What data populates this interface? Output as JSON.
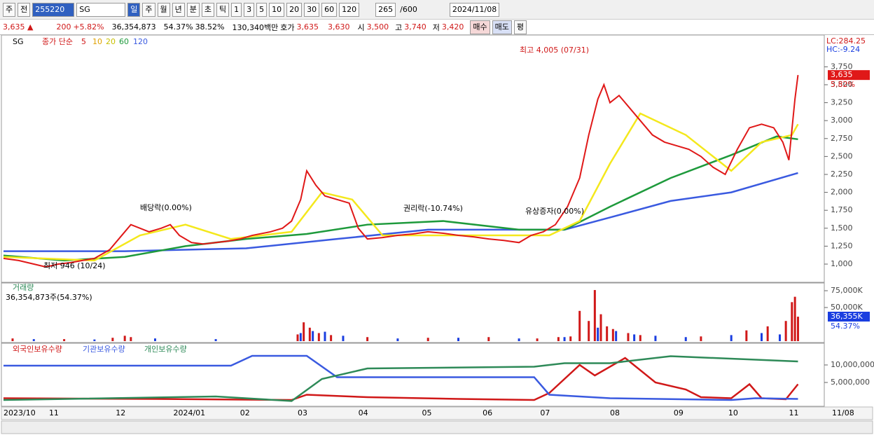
{
  "toolbar": {
    "items": [
      "주",
      "전",
      "255220",
      "SG",
      "일",
      "주",
      "월",
      "년",
      "분",
      "초",
      "틱",
      "1",
      "3",
      "5",
      "10",
      "20",
      "30",
      "60",
      "120"
    ],
    "count": "265",
    "count_max": "/600",
    "date": "2024/11/08"
  },
  "quote": {
    "price": "3,635 ▲",
    "change": "200",
    "change_pct": "+5.82%",
    "volume": "36,354,873",
    "turnover_pct": "54.37%",
    "ratio": "38.52%",
    "amount": "130,340백만",
    "bid_label": "호가",
    "ask": "3,635",
    "bid": "3,630",
    "open_label": "시",
    "open": "3,500",
    "high_label": "고",
    "high": "3,740",
    "low_label": "저",
    "low": "3,420",
    "buy": "매수",
    "sell": "매도",
    "avg": "평"
  },
  "price_panel": {
    "legend": [
      "SG",
      "종가 단순",
      "5",
      "10",
      "20",
      "60",
      "120"
    ],
    "lc": "LC:284.25",
    "hc": "HC:-9.24",
    "last_label": "3,635",
    "last_pct": "5.82%",
    "annotations": [
      "최고 4,005 (07/31)",
      "최저 946 (10/24)",
      "배당락(0.00%)",
      "권리락(-10.74%)",
      "유상증자(0.00%)"
    ],
    "ylim": [
      800,
      4150
    ],
    "yticks": [
      {
        "value": 1000,
        "label": "1,000"
      },
      {
        "value": 1250,
        "label": "1,250"
      },
      {
        "value": 1500,
        "label": "1,500"
      },
      {
        "value": 1750,
        "label": "1,750"
      },
      {
        "value": 2000,
        "label": "2,000"
      },
      {
        "value": 2250,
        "label": "2,250"
      },
      {
        "value": 2500,
        "label": "2,500"
      },
      {
        "value": 2750,
        "label": "2,750"
      },
      {
        "value": 3000,
        "label": "3,000"
      },
      {
        "value": 3250,
        "label": "3,250"
      },
      {
        "value": 3500,
        "label": "3,500"
      },
      {
        "value": 3750,
        "label": "3,750"
      }
    ],
    "series": [
      {
        "name": "종가",
        "color": "#e01818",
        "x": [
          0,
          5,
          10,
          14,
          18,
          22,
          26,
          30,
          35,
          38,
          42,
          45,
          48,
          52,
          55,
          58,
          62,
          66,
          70,
          74,
          78,
          82,
          88,
          92,
          95,
          98,
          100,
          103,
          106,
          110,
          114,
          117,
          120,
          125,
          130,
          135,
          140,
          145,
          150,
          155,
          160,
          165,
          170,
          174,
          178,
          182,
          186,
          190,
          193,
          196,
          198,
          200,
          203,
          206,
          210,
          214,
          218,
          222,
          226,
          230,
          234,
          238,
          242,
          246,
          250,
          254,
          257,
          259,
          261,
          262
        ],
        "values": [
          1080,
          1050,
          1000,
          960,
          1000,
          1020,
          1050,
          1080,
          1200,
          1350,
          1550,
          1500,
          1450,
          1500,
          1550,
          1400,
          1300,
          1280,
          1300,
          1320,
          1350,
          1400,
          1450,
          1500,
          1600,
          1900,
          2300,
          2100,
          1950,
          1900,
          1850,
          1500,
          1350,
          1370,
          1400,
          1420,
          1450,
          1430,
          1400,
          1380,
          1350,
          1330,
          1300,
          1400,
          1450,
          1550,
          1800,
          2200,
          2800,
          3300,
          3500,
          3250,
          3350,
          3200,
          3000,
          2800,
          2700,
          2650,
          2600,
          2500,
          2350,
          2250,
          2600,
          2900,
          2950,
          2900,
          2700,
          2450,
          3300,
          3635
        ]
      },
      {
        "name": "20",
        "color": "#f4e81c",
        "x": [
          0,
          30,
          45,
          60,
          75,
          95,
          105,
          115,
          125,
          160,
          180,
          190,
          200,
          210,
          225,
          240,
          250,
          260,
          262
        ],
        "values": [
          1100,
          1050,
          1400,
          1550,
          1350,
          1450,
          2000,
          1900,
          1400,
          1400,
          1400,
          1600,
          2400,
          3100,
          2800,
          2300,
          2700,
          2800,
          2950
        ]
      },
      {
        "name": "60",
        "color": "#1e9a3c",
        "x": [
          0,
          20,
          40,
          60,
          80,
          100,
          120,
          145,
          170,
          185,
          200,
          220,
          240,
          255,
          262
        ],
        "values": [
          1120,
          1050,
          1100,
          1250,
          1350,
          1420,
          1550,
          1600,
          1480,
          1480,
          1800,
          2200,
          2520,
          2780,
          2740
        ]
      },
      {
        "name": "120",
        "color": "#3a5ae0",
        "x": [
          0,
          40,
          80,
          110,
          140,
          170,
          185,
          200,
          220,
          240,
          262
        ],
        "values": [
          1180,
          1180,
          1220,
          1350,
          1480,
          1480,
          1480,
          1650,
          1880,
          2000,
          2270
        ]
      }
    ]
  },
  "volume_panel": {
    "title": "거래량",
    "subtitle": "36,354,873주(54.37%)",
    "last_label": "36,355K",
    "last_pct": "54.37%",
    "ylim": [
      0,
      82000
    ],
    "yticks": [
      {
        "value": 50000,
        "label": "50,000K"
      },
      {
        "value": 75000,
        "label": "75,000K"
      }
    ],
    "series": [
      {
        "color": "#d01818",
        "x": [
          3,
          20,
          36,
          40,
          42,
          97,
          99,
          101,
          104,
          108,
          120,
          140,
          160,
          176,
          183,
          187,
          190,
          193,
          195,
          197,
          199,
          201,
          206,
          210,
          230,
          245,
          252,
          258,
          260,
          261,
          262
        ],
        "values": [
          4000,
          3000,
          5000,
          8000,
          6000,
          10000,
          28000,
          20000,
          12000,
          9000,
          6000,
          5000,
          6000,
          4000,
          6000,
          7000,
          45000,
          30000,
          76000,
          40000,
          22000,
          18000,
          12000,
          9000,
          7000,
          16000,
          22000,
          30000,
          58000,
          66000,
          36355
        ]
      },
      {
        "color": "#1a3ee0",
        "x": [
          10,
          30,
          50,
          70,
          98,
          102,
          106,
          112,
          130,
          150,
          170,
          185,
          196,
          202,
          208,
          215,
          225,
          240,
          250,
          256
        ],
        "values": [
          3000,
          2500,
          4000,
          3000,
          12000,
          15000,
          14000,
          8000,
          4000,
          5000,
          4000,
          6000,
          20000,
          15000,
          10000,
          8000,
          6000,
          9000,
          12000,
          10000
        ]
      }
    ]
  },
  "holdings_panel": {
    "ylim": [
      -1800000,
      13200000
    ],
    "yticks": [
      {
        "value": 5000000,
        "label": "5,000,000"
      },
      {
        "value": 10000000,
        "label": "10,000,000"
      }
    ],
    "series": [
      {
        "name": "외국인보유수량",
        "color": "#d01818",
        "x": [
          0,
          50,
          95,
          100,
          120,
          150,
          175,
          180,
          190,
          195,
          205,
          215,
          225,
          230,
          240,
          246,
          250,
          258,
          262
        ],
        "values": [
          500000,
          300000,
          0,
          1500000,
          800000,
          300000,
          0,
          2000000,
          10000000,
          7000000,
          12000000,
          5000000,
          3000000,
          800000,
          500000,
          4500000,
          500000,
          200000,
          4500000
        ]
      },
      {
        "name": "기관보유수량",
        "color": "#3a5ae0",
        "x": [
          0,
          75,
          82,
          100,
          110,
          175,
          180,
          200,
          240,
          248,
          262
        ],
        "values": [
          9800000,
          9800000,
          12600000,
          12600000,
          6500000,
          6500000,
          1500000,
          500000,
          0,
          500000,
          300000
        ]
      },
      {
        "name": "개인보유수량",
        "color": "#2e8a58",
        "x": [
          0,
          70,
          95,
          105,
          120,
          175,
          185,
          200,
          220,
          262
        ],
        "values": [
          0,
          1000000,
          -300000,
          6000000,
          9000000,
          9500000,
          10500000,
          10500000,
          12500000,
          11000000
        ]
      }
    ]
  },
  "x_axis": {
    "labels": [
      "2023/10",
      "11",
      "12",
      "2024/01",
      "02",
      "03",
      "04",
      "05",
      "06",
      "07",
      "08",
      "09",
      "10",
      "11"
    ],
    "positions": [
      0,
      15,
      37,
      56,
      78,
      97,
      117,
      138,
      158,
      177,
      200,
      221,
      239,
      259
    ],
    "last": "11/08"
  }
}
